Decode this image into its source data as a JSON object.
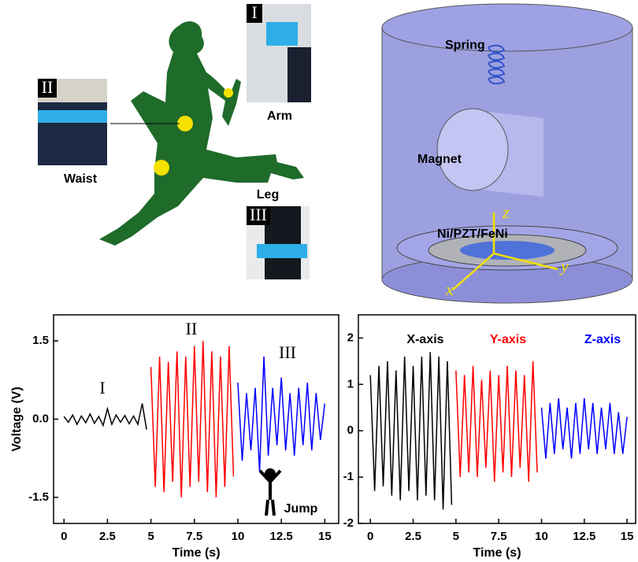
{
  "illustration": {
    "inset_labels": [
      "I",
      "II",
      "III"
    ],
    "placements": [
      "Arm",
      "Waist",
      "Leg"
    ],
    "device_labels": [
      "Spring",
      "Magnet",
      "Ni/PZT/FeNi"
    ],
    "axes": [
      "z",
      "y",
      "x"
    ]
  },
  "chart_data": [
    {
      "type": "line",
      "ylabel": "Voltage (V)",
      "xlabel": "Time (s)",
      "annotations": [
        "I",
        "II",
        "III",
        "Jump"
      ],
      "xlim": [
        -0.6,
        15.8
      ],
      "ylim": [
        -2,
        2
      ],
      "xticks": [
        0,
        2.5,
        5,
        7.5,
        10,
        12.5,
        15
      ],
      "yticks": [
        1.5,
        {
          "value": 0,
          "label": "0.0"
        },
        -1.5
      ],
      "series": [
        {
          "color": "#000000",
          "x": [
            0,
            0.25,
            0.5,
            0.75,
            1,
            1.25,
            1.5,
            1.75,
            2,
            2.25,
            2.5,
            2.75,
            3,
            3.25,
            3.5,
            3.75,
            4,
            4.25,
            4.5,
            4.75
          ],
          "values": [
            0.05,
            -0.06,
            0.08,
            -0.1,
            0.06,
            -0.07,
            0.1,
            -0.08,
            0.05,
            -0.12,
            0.2,
            -0.1,
            0.08,
            -0.06,
            0.07,
            -0.09,
            0.06,
            -0.1,
            0.3,
            -0.2
          ]
        },
        {
          "color": "#ff0000",
          "x": [
            5,
            5.25,
            5.5,
            5.75,
            6,
            6.25,
            6.5,
            6.75,
            7,
            7.25,
            7.5,
            7.75,
            8,
            8.25,
            8.5,
            8.75,
            9,
            9.25,
            9.5,
            9.75
          ],
          "values": [
            1.0,
            -1.3,
            1.2,
            -1.4,
            1.1,
            -1.2,
            1.3,
            -1.5,
            1.2,
            -1.3,
            1.4,
            -1.2,
            1.5,
            -1.4,
            1.3,
            -1.5,
            1.2,
            -1.3,
            1.4,
            -1.1
          ]
        },
        {
          "color": "#0000ff",
          "x": [
            10,
            10.25,
            10.5,
            10.75,
            11,
            11.25,
            11.5,
            11.75,
            12,
            12.25,
            12.5,
            12.75,
            13,
            13.25,
            13.5,
            13.75,
            14,
            14.25,
            14.5,
            14.75,
            15
          ],
          "values": [
            0.7,
            -0.8,
            0.5,
            -0.6,
            0.6,
            -1.0,
            1.2,
            -0.7,
            0.6,
            -0.5,
            0.8,
            -0.6,
            0.5,
            -0.7,
            0.6,
            -0.5,
            0.7,
            -0.6,
            0.5,
            -0.4,
            0.3
          ]
        }
      ]
    },
    {
      "type": "line",
      "xlabel": "Time (s)",
      "xlim": [
        -0.7,
        15.5
      ],
      "ylim": [
        -2,
        2.5
      ],
      "xticks": [
        0,
        2.5,
        5,
        7.5,
        10,
        12.5,
        15
      ],
      "yticks": [
        2,
        1,
        0,
        -1,
        -2
      ],
      "series": [
        {
          "name": "X-axis",
          "color": "#000000",
          "x": [
            0,
            0.25,
            0.5,
            0.75,
            1,
            1.25,
            1.5,
            1.75,
            2,
            2.25,
            2.5,
            2.75,
            3,
            3.25,
            3.5,
            3.75,
            4,
            4.25,
            4.5,
            4.75
          ],
          "values": [
            1.2,
            -1.3,
            1.4,
            -1.2,
            1.5,
            -1.4,
            1.3,
            -1.5,
            1.6,
            -1.3,
            1.4,
            -1.5,
            1.6,
            -1.4,
            1.7,
            -1.5,
            1.6,
            -1.7,
            1.5,
            -1.6
          ]
        },
        {
          "name": "Y-axis",
          "color": "#ff0000",
          "x": [
            5,
            5.25,
            5.5,
            5.75,
            6,
            6.25,
            6.5,
            6.75,
            7,
            7.25,
            7.5,
            7.75,
            8,
            8.25,
            8.5,
            8.75,
            9,
            9.25,
            9.5,
            9.75
          ],
          "values": [
            1.3,
            -1.0,
            1.2,
            -0.9,
            1.4,
            -1.0,
            1.1,
            -0.8,
            1.3,
            -1.1,
            1.2,
            -0.9,
            1.4,
            -1.0,
            1.3,
            -0.8,
            1.2,
            -1.1,
            1.5,
            -0.9
          ]
        },
        {
          "name": "Z-axis",
          "color": "#0000ff",
          "x": [
            10,
            10.25,
            10.5,
            10.75,
            11,
            11.25,
            11.5,
            11.75,
            12,
            12.25,
            12.5,
            12.75,
            13,
            13.25,
            13.5,
            13.75,
            14,
            14.25,
            14.5,
            14.75,
            15
          ],
          "values": [
            0.5,
            -0.6,
            0.6,
            -0.5,
            0.7,
            -0.4,
            0.5,
            -0.6,
            0.6,
            -0.5,
            0.7,
            -0.4,
            0.6,
            -0.5,
            0.5,
            -0.4,
            0.6,
            -0.5,
            0.4,
            -0.5,
            0.3
          ]
        }
      ]
    }
  ]
}
